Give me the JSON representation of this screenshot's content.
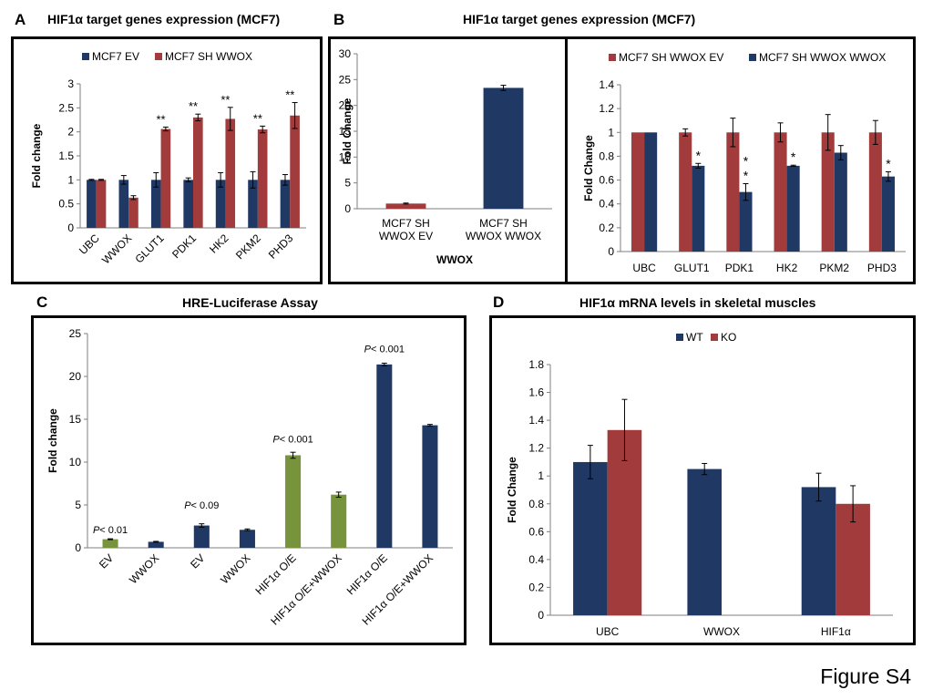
{
  "figure_label": "Figure S4",
  "panels": {
    "A": {
      "letter": "A",
      "title": "HIF1α target genes expression (MCF7)"
    },
    "B": {
      "letter": "B",
      "title": "HIF1α target genes expression (MCF7)"
    },
    "C": {
      "letter": "C",
      "title": "HRE-Luciferase Assay"
    },
    "D": {
      "letter": "D",
      "title": "HIF1α mRNA levels in skeletal muscles"
    }
  },
  "colors": {
    "blue": "#1f3864",
    "red": "#a23b3b",
    "green": "#77933c"
  },
  "chart_data": [
    {
      "id": "A",
      "type": "bar",
      "ylabel": "Fold change",
      "ylim": [
        0,
        3
      ],
      "yticks": [
        0,
        0.5,
        1,
        1.5,
        2,
        2.5,
        3
      ],
      "categories": [
        "UBC",
        "WWOX",
        "GLUT1",
        "PDK1",
        "HK2",
        "PKM2",
        "PHD3"
      ],
      "series": [
        {
          "name": "MCF7 EV",
          "color": "#1f3864",
          "values": [
            1.0,
            1.0,
            1.0,
            1.0,
            1.0,
            1.0,
            1.0
          ],
          "errors": [
            0.01,
            0.09,
            0.15,
            0.04,
            0.15,
            0.17,
            0.11
          ]
        },
        {
          "name": "MCF7 SH WWOX",
          "color": "#a23b3b",
          "values": [
            1.0,
            0.63,
            2.06,
            2.3,
            2.27,
            2.05,
            2.34
          ],
          "errors": [
            0.01,
            0.04,
            0.04,
            0.07,
            0.24,
            0.07,
            0.27
          ]
        }
      ],
      "annotations": [
        {
          "index": 2,
          "text": "**"
        },
        {
          "index": 3,
          "text": "**"
        },
        {
          "index": 4,
          "text": "**"
        },
        {
          "index": 5,
          "text": "**"
        },
        {
          "index": 6,
          "text": "**"
        }
      ],
      "legend_position": "top"
    },
    {
      "id": "B1",
      "type": "bar",
      "ylabel": "Fold Change",
      "xlabel": "WWOX",
      "ylim": [
        0,
        30
      ],
      "yticks": [
        0,
        5,
        10,
        15,
        20,
        25,
        30
      ],
      "categories": [
        "MCF7 SH WWOX EV",
        "MCF7 SH WWOX WWOX"
      ],
      "category_lines": [
        [
          "MCF7 SH",
          "WWOX EV"
        ],
        [
          "MCF7 SH",
          "WWOX WWOX"
        ]
      ],
      "values": [
        1.0,
        23.4
      ],
      "errors": [
        0.1,
        0.5
      ],
      "bar_colors": [
        "#a23b3b",
        "#1f3864"
      ]
    },
    {
      "id": "B2",
      "type": "bar",
      "ylabel": "Fold Change",
      "ylim": [
        0,
        1.4
      ],
      "yticks": [
        "0",
        "0.2",
        "0.4",
        "0.6",
        "0.8",
        "1",
        "1.2",
        "1.4"
      ],
      "categories": [
        "UBC",
        "GLUT1",
        "PDK1",
        "HK2",
        "PKM2",
        "PHD3"
      ],
      "series": [
        {
          "name": "MCF7 SH WWOX EV",
          "color": "#a23b3b",
          "values": [
            1.0,
            1.0,
            1.0,
            1.0,
            1.0,
            1.0
          ],
          "errors": [
            0.0,
            0.03,
            0.12,
            0.08,
            0.15,
            0.1
          ]
        },
        {
          "name": "MCF7 SH WWOX WWOX",
          "color": "#1f3864",
          "values": [
            1.0,
            0.72,
            0.5,
            0.72,
            0.83,
            0.63
          ],
          "errors": [
            0.0,
            0.02,
            0.07,
            0.005,
            0.06,
            0.04
          ]
        }
      ],
      "annotations": [
        {
          "index": 1,
          "lines": [
            "*"
          ]
        },
        {
          "index": 2,
          "lines": [
            "*",
            "*"
          ]
        },
        {
          "index": 3,
          "lines": [
            "*"
          ]
        },
        {
          "index": 5,
          "lines": [
            "*"
          ]
        }
      ],
      "legend_position": "top"
    },
    {
      "id": "C",
      "type": "bar",
      "ylabel": "Fold change",
      "ylim": [
        0,
        25
      ],
      "yticks": [
        0,
        5,
        10,
        15,
        20,
        25
      ],
      "categories": [
        "EV",
        "WWOX",
        "EV",
        "WWOX",
        "HIF1α O/E",
        "HIF1α O/E+WWOX",
        "HIF1α O/E",
        "HIF1α O/E+WWOX"
      ],
      "values": [
        1.0,
        0.7,
        2.6,
        2.1,
        10.8,
        6.2,
        21.4,
        14.3
      ],
      "errors": [
        0.05,
        0.05,
        0.2,
        0.1,
        0.35,
        0.3,
        0.15,
        0.1
      ],
      "bar_colors": [
        "#77933c",
        "#1f3864",
        "#1f3864",
        "#1f3864",
        "#77933c",
        "#77933c",
        "#1f3864",
        "#1f3864"
      ],
      "annotations": [
        {
          "index": 0,
          "p": "P",
          "rest": "< 0.01",
          "y": 1.7
        },
        {
          "index": 2,
          "p": "P",
          "rest": "< 0.09",
          "y": 4.6
        },
        {
          "index": 4,
          "p": "P",
          "rest": "< 0.001",
          "y": 12.3
        },
        {
          "index": 6,
          "p": "P",
          "rest": "< 0.001",
          "y": 22.8
        }
      ]
    },
    {
      "id": "D",
      "type": "bar",
      "ylabel": "Fold Change",
      "ylim": [
        0,
        1.8
      ],
      "yticks": [
        "0",
        "0.2",
        "0.4",
        "0.6",
        "0.8",
        "1",
        "1.2",
        "1.4",
        "1.6",
        "1.8"
      ],
      "categories": [
        "UBC",
        "WWOX",
        "HIF1α"
      ],
      "series": [
        {
          "name": "WT",
          "color": "#1f3864",
          "values": [
            1.1,
            1.05,
            0.92
          ],
          "errors": [
            0.12,
            0.04,
            0.1
          ]
        },
        {
          "name": "KO",
          "color": "#a23b3b",
          "values": [
            1.33,
            0.0,
            0.8
          ],
          "errors": [
            0.22,
            0.0,
            0.13
          ]
        }
      ],
      "legend_position": "top"
    }
  ]
}
